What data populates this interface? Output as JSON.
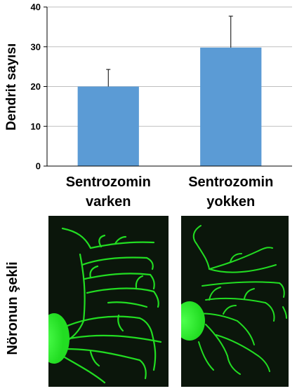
{
  "chart_data": {
    "type": "bar",
    "categories": [
      [
        "Sentrozomin",
        "varken"
      ],
      [
        "Sentrozomin",
        "yokken"
      ]
    ],
    "values": [
      20,
      29.8
    ],
    "errors": [
      4.3,
      7.9
    ],
    "ylabel": "Dendrit sayısı",
    "ylim": [
      0,
      40
    ],
    "yticks": [
      0,
      10,
      20,
      30,
      40
    ],
    "grid": true,
    "bar_color": "#5b9bd5",
    "grid_color": "#bfbfbf"
  },
  "images": {
    "row_label": "Nöronun şekli",
    "left_alt": "Sentrozomin varken nöron",
    "right_alt": "Sentrozomin yokken nöron",
    "neuron_color": "#22dd22",
    "background_color": "#0b160b"
  }
}
